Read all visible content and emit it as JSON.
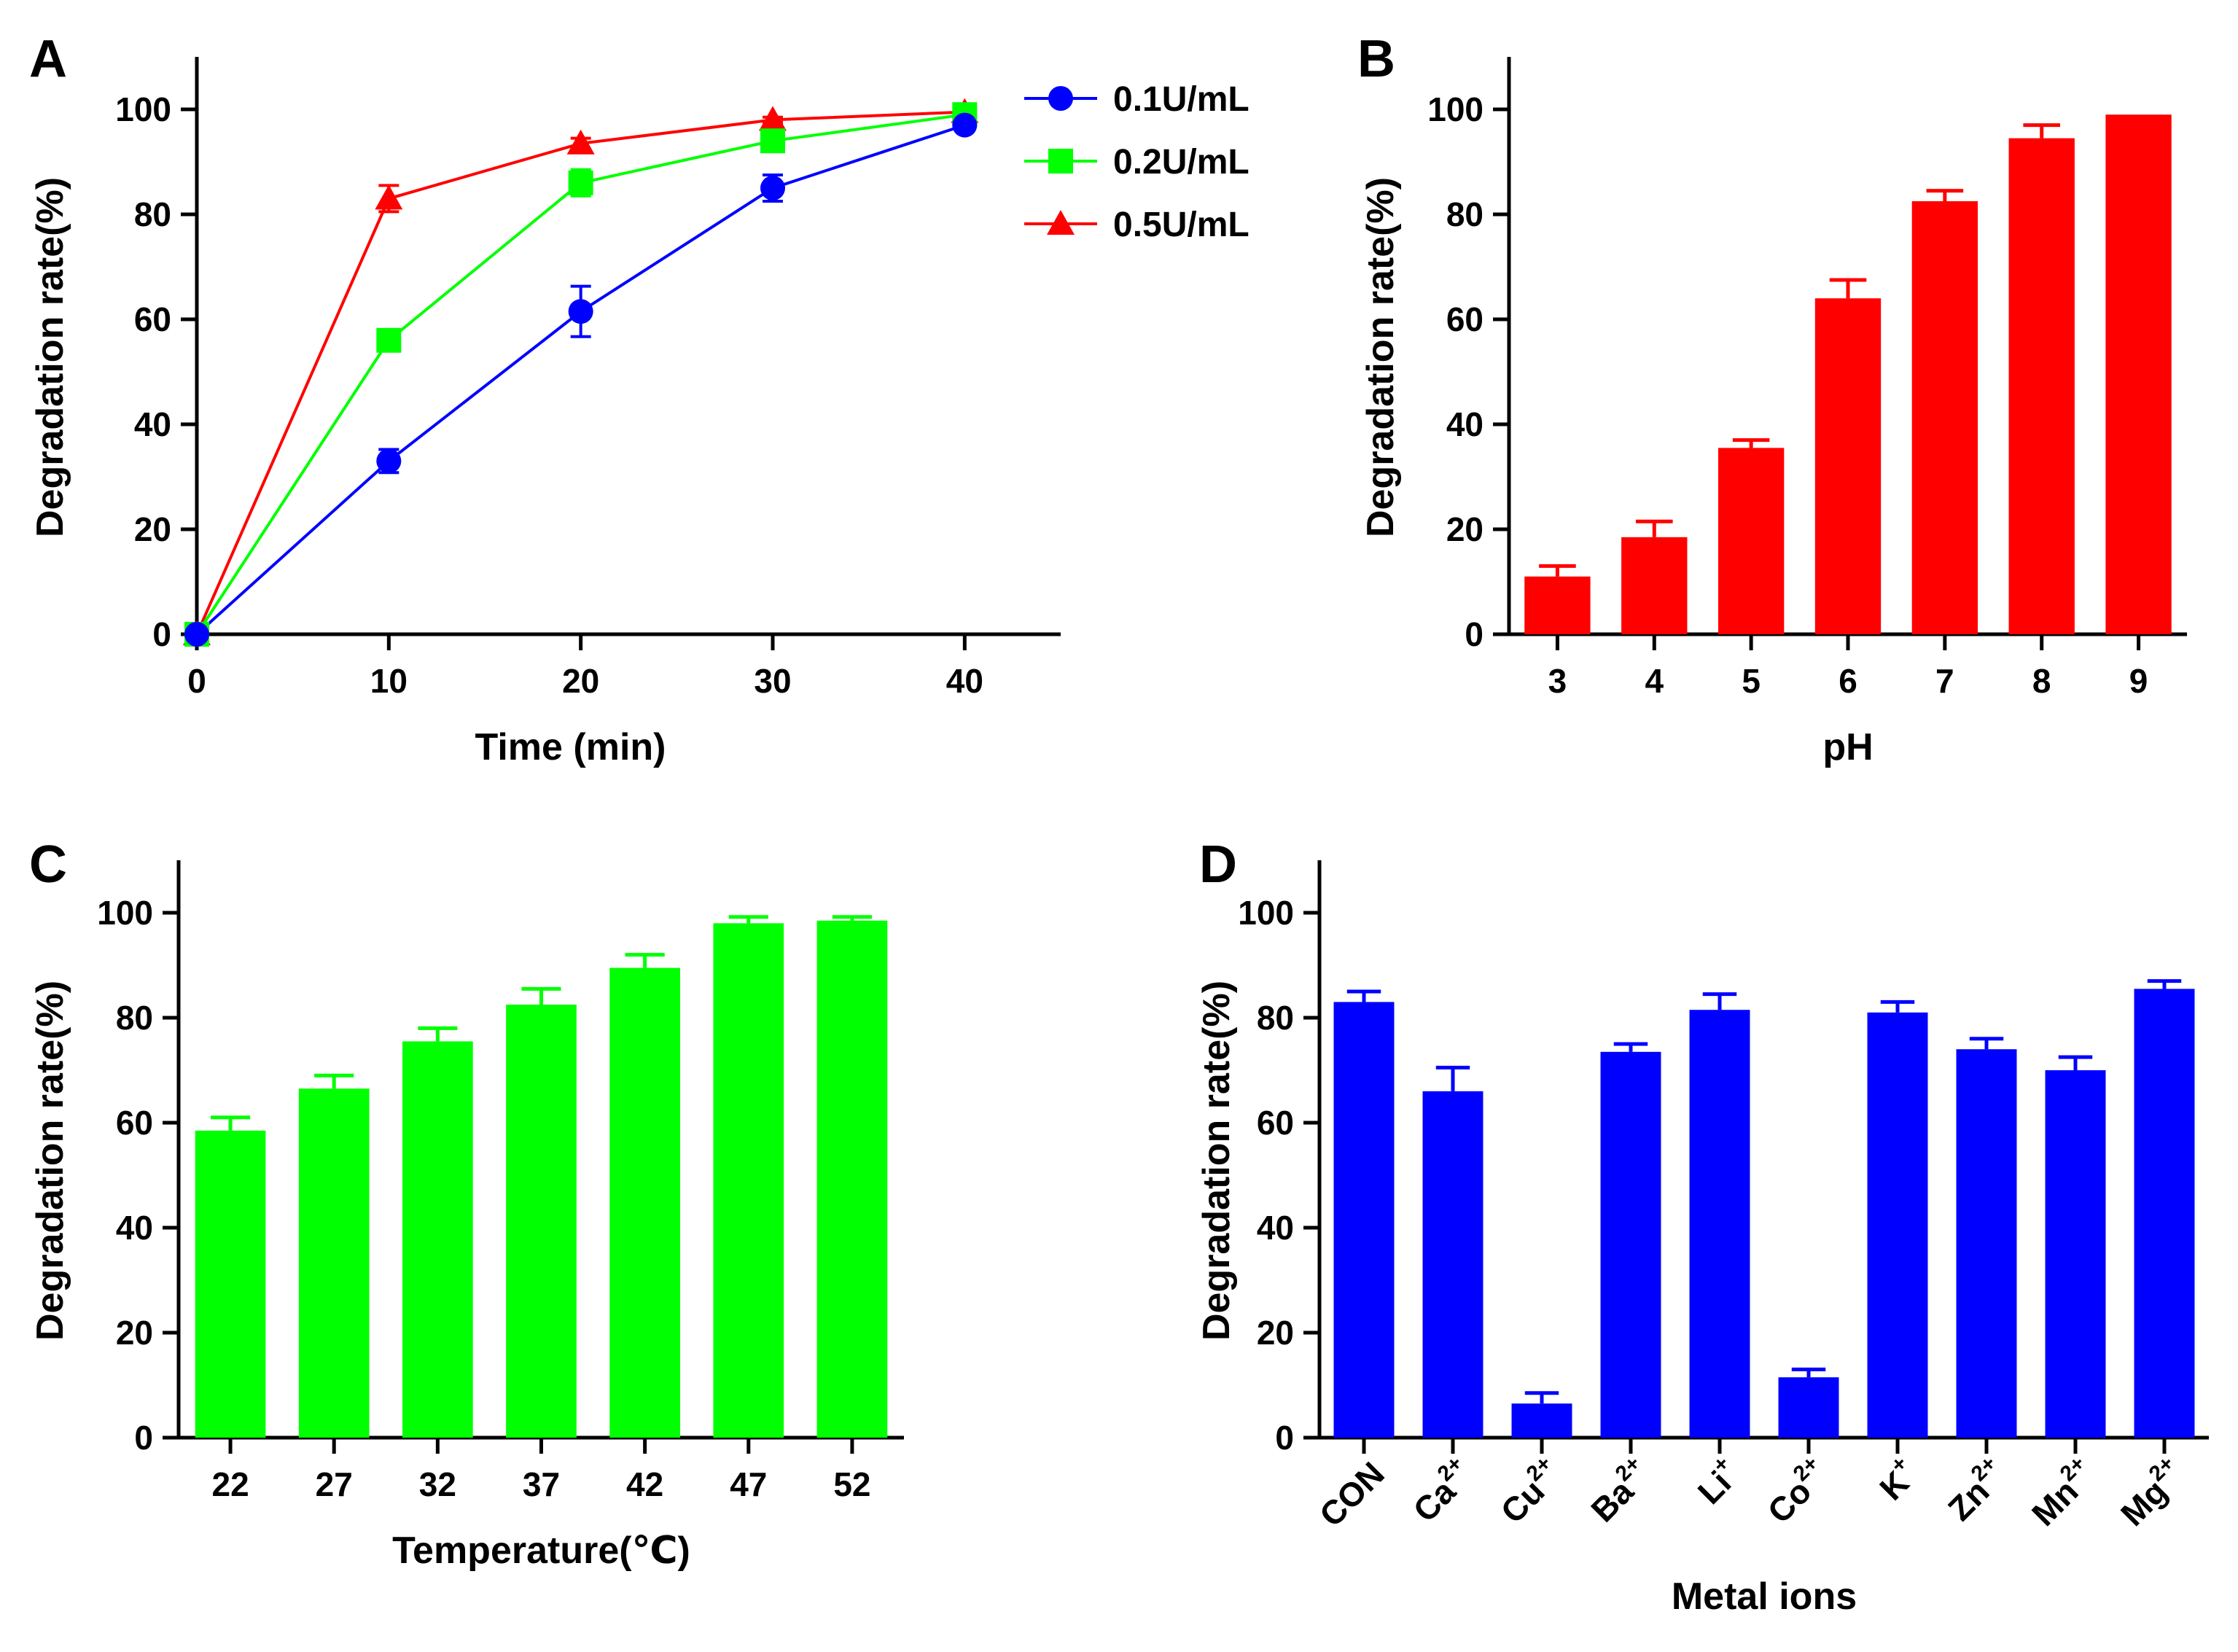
{
  "colors": {
    "blue": "#0000ff",
    "green": "#00ff00",
    "red": "#ff0000",
    "axis": "#000000"
  },
  "chart_data": [
    {
      "id": "A",
      "type": "line",
      "panel_label": "A",
      "xlabel": "Time (min)",
      "ylabel": "Degradation rate(%)",
      "xlim": [
        0,
        45
      ],
      "ylim": [
        0,
        110
      ],
      "xticks": [
        0,
        10,
        20,
        30,
        40
      ],
      "yticks": [
        0,
        20,
        40,
        60,
        80,
        100
      ],
      "legend_position": "top-right",
      "series": [
        {
          "name": "0.1U/mL",
          "color": "#0000ff",
          "marker": "circle",
          "x": [
            0,
            10,
            20,
            30,
            40
          ],
          "y": [
            0,
            33,
            61.5,
            85,
            97
          ],
          "err": [
            0,
            2.2,
            4.8,
            2.5,
            0.8
          ]
        },
        {
          "name": "0.2U/mL",
          "color": "#00ff00",
          "marker": "square",
          "x": [
            0,
            10,
            20,
            30,
            40
          ],
          "y": [
            0,
            56,
            86,
            94,
            99
          ],
          "err": [
            0,
            1.5,
            2.5,
            1.5,
            0.5
          ]
        },
        {
          "name": "0.5U/mL",
          "color": "#ff0000",
          "marker": "triangle",
          "x": [
            0,
            10,
            20,
            30,
            40
          ],
          "y": [
            0,
            83,
            93.5,
            98,
            99.5
          ],
          "err": [
            0,
            2.5,
            1,
            0.5,
            0.3
          ]
        }
      ]
    },
    {
      "id": "B",
      "type": "bar",
      "panel_label": "B",
      "xlabel": "pH",
      "ylabel": "Degradation rate(%)",
      "ylim": [
        0,
        110
      ],
      "yticks": [
        0,
        20,
        40,
        60,
        80,
        100
      ],
      "color": "#ff0000",
      "categories": [
        "3",
        "4",
        "5",
        "6",
        "7",
        "8",
        "9"
      ],
      "values": [
        11,
        18.5,
        35.5,
        64,
        82.5,
        94.5,
        99
      ],
      "errors": [
        2,
        3,
        1.5,
        3.5,
        2,
        2.5,
        0
      ]
    },
    {
      "id": "C",
      "type": "bar",
      "panel_label": "C",
      "xlabel": "Temperature(℃)",
      "ylabel": "Degradation rate(%)",
      "ylim": [
        0,
        110
      ],
      "yticks": [
        0,
        20,
        40,
        60,
        80,
        100
      ],
      "color": "#00ff00",
      "categories": [
        "22",
        "27",
        "32",
        "37",
        "42",
        "47",
        "52"
      ],
      "values": [
        58.5,
        66.5,
        75.5,
        82.5,
        89.5,
        98,
        98.5
      ],
      "errors": [
        2.5,
        2.5,
        2.5,
        3,
        2.5,
        1.2,
        0.7
      ]
    },
    {
      "id": "D",
      "type": "bar",
      "panel_label": "D",
      "xlabel": "Metal ions",
      "ylabel": "Degradation rate(%)",
      "ylim": [
        0,
        110
      ],
      "yticks": [
        0,
        20,
        40,
        60,
        80,
        100
      ],
      "color": "#0000ff",
      "categories": [
        {
          "base": "CON",
          "sup": ""
        },
        {
          "base": "Ca",
          "sup": "2+"
        },
        {
          "base": "Cu",
          "sup": "2+"
        },
        {
          "base": "Ba",
          "sup": "2+"
        },
        {
          "base": "Li",
          "sup": "+"
        },
        {
          "base": "Co",
          "sup": "2+"
        },
        {
          "base": "K",
          "sup": "+"
        },
        {
          "base": "Zn",
          "sup": "2+"
        },
        {
          "base": "Mn",
          "sup": "2+"
        },
        {
          "base": "Mg",
          "sup": "2+"
        }
      ],
      "values": [
        83,
        66,
        6.5,
        73.5,
        81.5,
        11.5,
        81,
        74,
        70,
        85.5
      ],
      "errors": [
        2,
        4.5,
        2,
        1.5,
        3,
        1.5,
        2,
        2,
        2.5,
        1.5
      ]
    }
  ]
}
